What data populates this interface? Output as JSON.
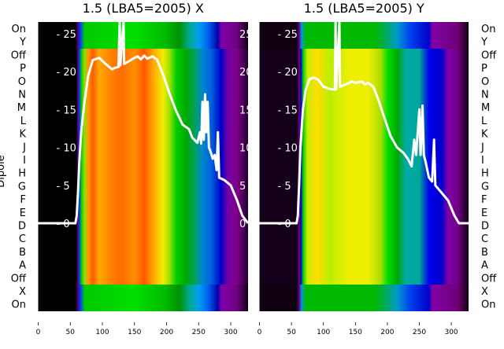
{
  "ylabel": "Dipole",
  "row_labels": [
    "On",
    "Y",
    "Off",
    "P",
    "O",
    "N",
    "M",
    "L",
    "K",
    "J",
    "I",
    "H",
    "G",
    "F",
    "E",
    "D",
    "C",
    "B",
    "A",
    "Off",
    "X",
    "On"
  ],
  "chart_data": [
    {
      "type": "line",
      "title": "1.5 (LBA5=2005) X",
      "xlim": [
        0,
        327
      ],
      "ylim": [
        0,
        25
      ],
      "xticks": [
        0,
        50,
        100,
        150,
        200,
        250,
        300
      ],
      "yticks": [
        0,
        5,
        10,
        15,
        20,
        25
      ],
      "line_color": "#ffffff",
      "series": [
        {
          "name": "X",
          "points": [
            [
              0,
              0
            ],
            [
              58,
              0
            ],
            [
              60,
              1
            ],
            [
              62,
              4
            ],
            [
              64,
              8
            ],
            [
              67,
              12
            ],
            [
              72,
              16
            ],
            [
              78,
              19.5
            ],
            [
              85,
              21.5
            ],
            [
              95,
              21.8
            ],
            [
              105,
              21
            ],
            [
              115,
              20.3
            ],
            [
              120,
              20.5
            ],
            [
              125,
              20.6
            ],
            [
              127,
              27
            ],
            [
              128,
              20.8
            ],
            [
              133,
              27
            ],
            [
              134,
              21
            ],
            [
              140,
              21.3
            ],
            [
              150,
              21.8
            ],
            [
              155,
              22
            ],
            [
              160,
              21.6
            ],
            [
              165,
              22.1
            ],
            [
              170,
              21.7
            ],
            [
              178,
              22
            ],
            [
              185,
              21.6
            ],
            [
              195,
              19.5
            ],
            [
              205,
              17
            ],
            [
              215,
              14.8
            ],
            [
              225,
              13
            ],
            [
              235,
              12.4
            ],
            [
              240,
              11.3
            ],
            [
              248,
              10.6
            ],
            [
              252,
              12
            ],
            [
              254,
              10.5
            ],
            [
              256,
              16
            ],
            [
              258,
              11
            ],
            [
              260,
              17
            ],
            [
              262,
              12
            ],
            [
              264,
              16
            ],
            [
              266,
              10
            ],
            [
              268,
              9.6
            ],
            [
              272,
              8.5
            ],
            [
              275,
              9
            ],
            [
              278,
              7
            ],
            [
              280,
              12
            ],
            [
              282,
              6
            ],
            [
              290,
              5.7
            ],
            [
              300,
              5
            ],
            [
              310,
              3
            ],
            [
              318,
              1
            ],
            [
              327,
              0
            ]
          ]
        }
      ],
      "heatmap_inner": [
        [
          0,
          "#000000"
        ],
        [
          60,
          "#000000"
        ],
        [
          62,
          "#7000a0"
        ],
        [
          64,
          "#0030ff"
        ],
        [
          67,
          "#00c800"
        ],
        [
          72,
          "#90e000"
        ],
        [
          78,
          "#ff9a00"
        ],
        [
          85,
          "#ff5a00"
        ],
        [
          95,
          "#ffaa00"
        ],
        [
          110,
          "#ff8800"
        ],
        [
          130,
          "#ff6a00"
        ],
        [
          150,
          "#ff9000"
        ],
        [
          165,
          "#ff5800"
        ],
        [
          180,
          "#ffaa00"
        ],
        [
          195,
          "#eeee00"
        ],
        [
          205,
          "#99e000"
        ],
        [
          215,
          "#00d000"
        ],
        [
          230,
          "#00a800"
        ],
        [
          245,
          "#00a060"
        ],
        [
          255,
          "#0088cc"
        ],
        [
          270,
          "#0060dd"
        ],
        [
          285,
          "#0000c8"
        ],
        [
          295,
          "#7000a8"
        ],
        [
          310,
          "#800088"
        ],
        [
          327,
          "#200030"
        ]
      ],
      "heatmap_outer": [
        [
          0,
          "#000000"
        ],
        [
          58,
          "#000000"
        ],
        [
          62,
          "#500088"
        ],
        [
          66,
          "#0040ff"
        ],
        [
          72,
          "#00c800"
        ],
        [
          150,
          "#00e000"
        ],
        [
          200,
          "#00b800"
        ],
        [
          220,
          "#009000"
        ],
        [
          235,
          "#00a888"
        ],
        [
          250,
          "#00a0ee"
        ],
        [
          265,
          "#0060ee"
        ],
        [
          280,
          "#0000aa"
        ],
        [
          285,
          "#8000a8"
        ],
        [
          310,
          "#700080"
        ],
        [
          327,
          "#100010"
        ]
      ]
    },
    {
      "type": "line",
      "title": "1.5 (LBA5=2005) Y",
      "xlim": [
        0,
        327
      ],
      "ylim": [
        0,
        25
      ],
      "xticks": [
        0,
        50,
        100,
        150,
        200,
        250,
        300
      ],
      "yticks": [
        0,
        5,
        10,
        15,
        20,
        25
      ],
      "line_color": "#ffffff",
      "series": [
        {
          "name": "Y",
          "points": [
            [
              0,
              0
            ],
            [
              58,
              0
            ],
            [
              60,
              1
            ],
            [
              62,
              5
            ],
            [
              64,
              10
            ],
            [
              68,
              15
            ],
            [
              72,
              17.5
            ],
            [
              78,
              19
            ],
            [
              85,
              19.2
            ],
            [
              92,
              18.9
            ],
            [
              100,
              18
            ],
            [
              110,
              17.7
            ],
            [
              118,
              17.6
            ],
            [
              119,
              27
            ],
            [
              120,
              17.7
            ],
            [
              125,
              27
            ],
            [
              126,
              18
            ],
            [
              135,
              18.3
            ],
            [
              145,
              18.7
            ],
            [
              150,
              18.5
            ],
            [
              160,
              18.7
            ],
            [
              165,
              18.3
            ],
            [
              170,
              18.5
            ],
            [
              178,
              18
            ],
            [
              185,
              16.5
            ],
            [
              195,
              14
            ],
            [
              205,
              11.5
            ],
            [
              215,
              10
            ],
            [
              225,
              9.3
            ],
            [
              232,
              8.5
            ],
            [
              238,
              7.5
            ],
            [
              242,
              11
            ],
            [
              245,
              9
            ],
            [
              250,
              15
            ],
            [
              252,
              9
            ],
            [
              255,
              15.5
            ],
            [
              257,
              9
            ],
            [
              260,
              8
            ],
            [
              265,
              6
            ],
            [
              270,
              5.5
            ],
            [
              273,
              11
            ],
            [
              275,
              5
            ],
            [
              285,
              4
            ],
            [
              295,
              3
            ],
            [
              305,
              1
            ],
            [
              312,
              0
            ],
            [
              327,
              0
            ]
          ]
        }
      ],
      "heatmap_inner": [
        [
          0,
          "#14001a"
        ],
        [
          60,
          "#14001a"
        ],
        [
          62,
          "#800090"
        ],
        [
          65,
          "#0000cc"
        ],
        [
          68,
          "#00c800"
        ],
        [
          75,
          "#c8ee00"
        ],
        [
          90,
          "#ffdd00"
        ],
        [
          110,
          "#bbee00"
        ],
        [
          140,
          "#eeee00"
        ],
        [
          170,
          "#eeee00"
        ],
        [
          190,
          "#aadd00"
        ],
        [
          200,
          "#00e000"
        ],
        [
          215,
          "#00a800"
        ],
        [
          230,
          "#00aaaa"
        ],
        [
          250,
          "#00a898"
        ],
        [
          265,
          "#0000ee"
        ],
        [
          285,
          "#0000cc"
        ],
        [
          295,
          "#8000a8"
        ],
        [
          310,
          "#700088"
        ],
        [
          327,
          "#100010"
        ]
      ],
      "heatmap_outer": [
        [
          0,
          "#100010"
        ],
        [
          58,
          "#100010"
        ],
        [
          62,
          "#60008a"
        ],
        [
          66,
          "#0099dd"
        ],
        [
          72,
          "#00b800"
        ],
        [
          120,
          "#00b800"
        ],
        [
          180,
          "#00b800"
        ],
        [
          200,
          "#00a866"
        ],
        [
          215,
          "#0099cc"
        ],
        [
          235,
          "#0044ee"
        ],
        [
          265,
          "#0000cc"
        ],
        [
          270,
          "#8000a8"
        ],
        [
          310,
          "#700077"
        ],
        [
          327,
          "#100010"
        ]
      ]
    }
  ]
}
